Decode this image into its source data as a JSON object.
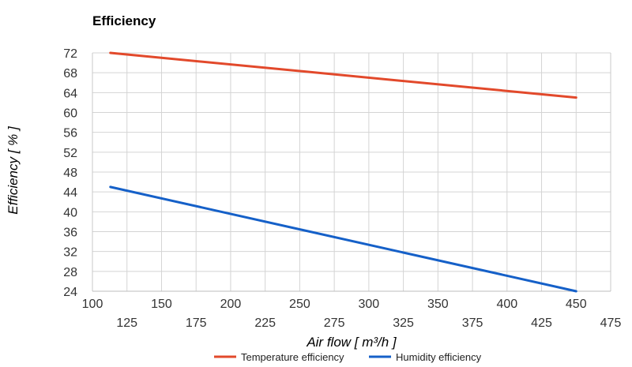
{
  "chart_data": {
    "type": "line",
    "title": "Efficiency",
    "xlabel": "Air flow [ m³/h ]",
    "ylabel": "Efficiency [ % ]",
    "xlim": [
      100,
      475
    ],
    "ylim": [
      24,
      72
    ],
    "x_ticks_upper": [
      100,
      150,
      200,
      250,
      300,
      350,
      400,
      450
    ],
    "x_ticks_lower": [
      125,
      175,
      225,
      275,
      325,
      375,
      425,
      475
    ],
    "y_ticks": [
      24,
      28,
      32,
      36,
      40,
      44,
      48,
      52,
      56,
      60,
      64,
      68,
      72
    ],
    "x_grid_step": 25,
    "grid": true,
    "legend_position": "bottom",
    "series": [
      {
        "name": "Temperature efficiency",
        "color": "#e2492b",
        "points": [
          [
            113,
            72
          ],
          [
            450,
            63
          ]
        ]
      },
      {
        "name": "Humidity efficiency",
        "color": "#1560c8",
        "points": [
          [
            113,
            45
          ],
          [
            450,
            24
          ]
        ]
      }
    ]
  }
}
